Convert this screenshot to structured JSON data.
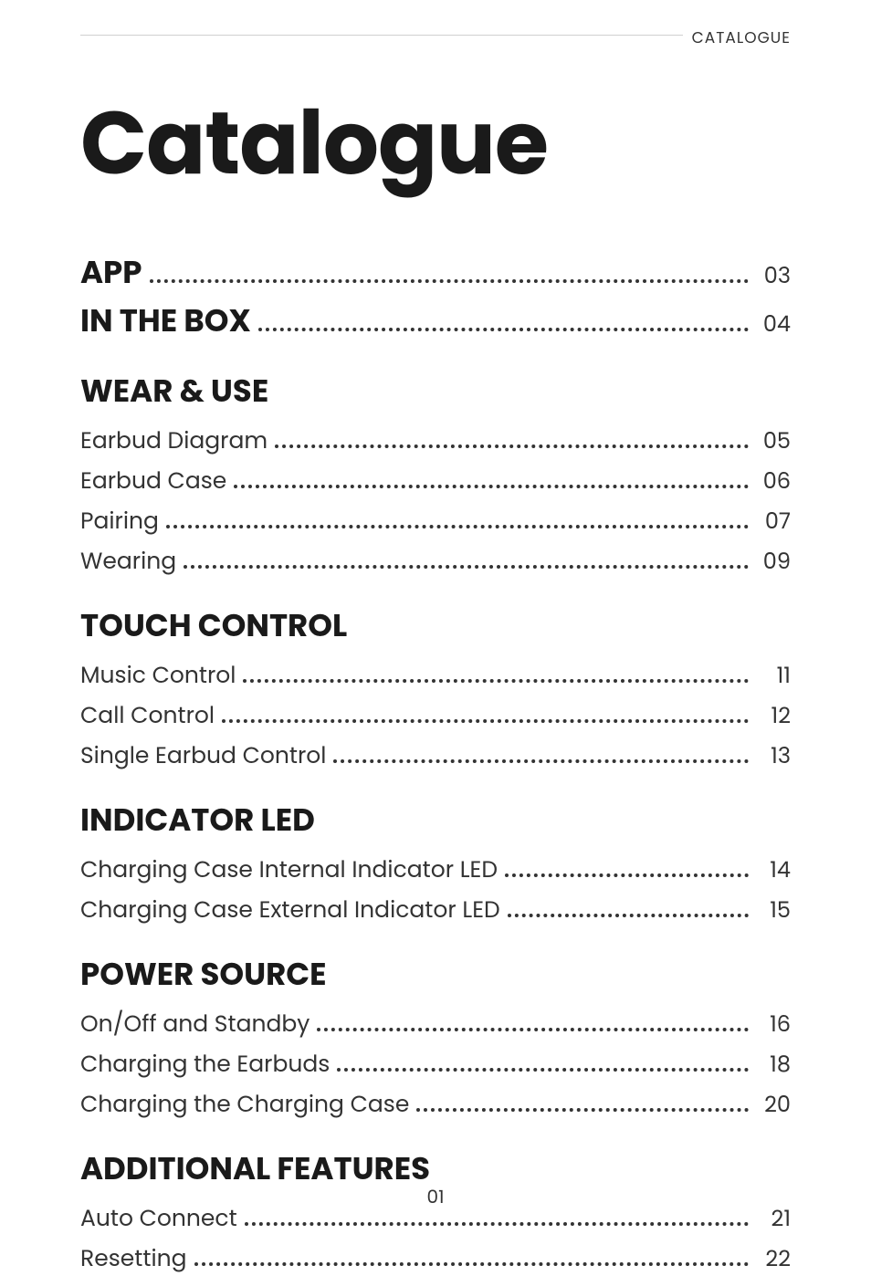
{
  "header_label": "CATALOGUE",
  "title": "Catalogue",
  "footer_page": "01",
  "colors": {
    "text": "#1a1a1a",
    "subtext": "#333333",
    "divider": "#d0d0d0",
    "background": "#ffffff"
  },
  "typography": {
    "title_fontsize": 96,
    "section_fontsize": 34,
    "entry_fontsize": 25,
    "page_fontsize": 24,
    "header_label_fontsize": 17
  },
  "toc": {
    "top_entries": [
      {
        "label": "APP",
        "page": "03"
      },
      {
        "label": "IN THE BOX",
        "page": "04"
      }
    ],
    "sections": [
      {
        "title": "WEAR & USE",
        "entries": [
          {
            "label": "Earbud Diagram",
            "page": "05"
          },
          {
            "label": "Earbud Case",
            "page": "06"
          },
          {
            "label": "Pairing",
            "page": "07"
          },
          {
            "label": "Wearing",
            "page": "09"
          }
        ]
      },
      {
        "title": "TOUCH CONTROL",
        "entries": [
          {
            "label": "Music Control",
            "page": "11"
          },
          {
            "label": "Call Control",
            "page": "12"
          },
          {
            "label": "Single Earbud Control",
            "page": "13"
          }
        ]
      },
      {
        "title": "INDICATOR LED",
        "entries": [
          {
            "label": "Charging Case Internal Indicator LED",
            "page": "14"
          },
          {
            "label": "Charging Case External Indicator LED",
            "page": "15"
          }
        ]
      },
      {
        "title": "POWER SOURCE",
        "entries": [
          {
            "label": "On/Off and Standby",
            "page": "16"
          },
          {
            "label": "Charging the Earbuds",
            "page": "18"
          },
          {
            "label": "Charging the Charging Case",
            "page": "20"
          }
        ]
      },
      {
        "title": "ADDITIONAL FEATURES",
        "entries": [
          {
            "label": "Auto Connect",
            "page": "21"
          },
          {
            "label": "Resetting",
            "page": "22"
          }
        ]
      }
    ]
  }
}
